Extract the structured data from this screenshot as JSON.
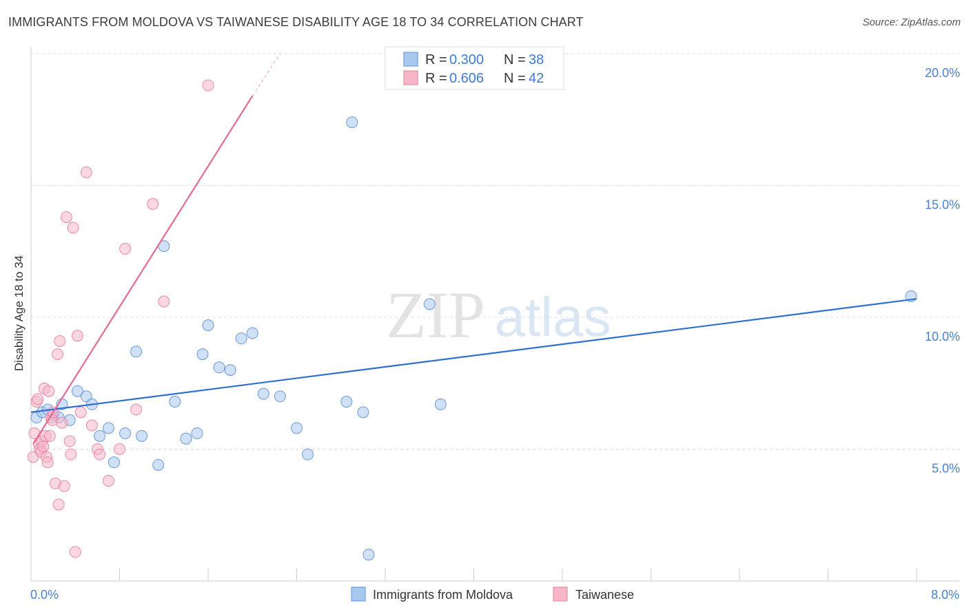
{
  "title": "IMMIGRANTS FROM MOLDOVA VS TAIWANESE DISABILITY AGE 18 TO 34 CORRELATION CHART",
  "source": "Source: ZipAtlas.com",
  "watermark": {
    "zip": "ZIP",
    "atlas": "atlas"
  },
  "legend": {
    "r_label": "R =",
    "n_label": "N =",
    "rows": [
      {
        "r": "0.300",
        "n": "38"
      },
      {
        "r": "0.606",
        "n": "42"
      }
    ]
  },
  "colors": {
    "blue_fill": "#a9c8f0",
    "blue_stroke": "#5b8fd8",
    "blue_line": "#2f6fd0",
    "pink_fill": "#f6b6c8",
    "pink_stroke": "#e77fa0",
    "pink_line": "#e36a92",
    "grid": "#dddddd",
    "tick_text": "#4a7fd0"
  },
  "chart_data": {
    "type": "scatter",
    "title": "IMMIGRANTS FROM MOLDOVA VS TAIWANESE DISABILITY AGE 18 TO 34 CORRELATION CHART",
    "xlabel": "",
    "ylabel": "Disability Age 18 to 34",
    "xlim": [
      0,
      8
    ],
    "ylim": [
      0,
      20
    ],
    "x_tick_labels": [
      "0.0%",
      "8.0%"
    ],
    "y_ticks": [
      5,
      10,
      15,
      20
    ],
    "y_tick_labels": [
      "5.0%",
      "10.0%",
      "15.0%",
      "20.0%"
    ],
    "grid": true,
    "legend_position": "top-center",
    "series": [
      {
        "name": "Immigrants from Moldova",
        "color": "#a9c8f0",
        "r": 0.3,
        "n": 38,
        "trend": {
          "x": [
            0,
            8
          ],
          "y": [
            6.4,
            10.7
          ]
        },
        "points": [
          [
            0.05,
            6.2
          ],
          [
            0.1,
            6.4
          ],
          [
            0.15,
            6.5
          ],
          [
            0.2,
            6.3
          ],
          [
            0.25,
            6.2
          ],
          [
            0.28,
            6.7
          ],
          [
            0.35,
            6.1
          ],
          [
            0.42,
            7.2
          ],
          [
            0.5,
            7.0
          ],
          [
            0.55,
            6.7
          ],
          [
            0.62,
            5.5
          ],
          [
            0.7,
            5.8
          ],
          [
            0.75,
            4.5
          ],
          [
            0.85,
            5.6
          ],
          [
            0.95,
            8.7
          ],
          [
            1.0,
            5.5
          ],
          [
            1.15,
            4.4
          ],
          [
            1.2,
            12.7
          ],
          [
            1.3,
            6.8
          ],
          [
            1.4,
            5.4
          ],
          [
            1.5,
            5.6
          ],
          [
            1.55,
            8.6
          ],
          [
            1.6,
            9.7
          ],
          [
            1.7,
            8.1
          ],
          [
            1.8,
            8.0
          ],
          [
            1.9,
            9.2
          ],
          [
            2.0,
            9.4
          ],
          [
            2.1,
            7.1
          ],
          [
            2.25,
            7.0
          ],
          [
            2.4,
            5.8
          ],
          [
            2.5,
            4.8
          ],
          [
            2.85,
            6.8
          ],
          [
            2.9,
            17.4
          ],
          [
            3.0,
            6.4
          ],
          [
            3.05,
            1.0
          ],
          [
            3.6,
            10.5
          ],
          [
            3.7,
            6.7
          ],
          [
            7.95,
            10.8
          ]
        ]
      },
      {
        "name": "Taiwanese",
        "color": "#f6b6c8",
        "r": 0.606,
        "n": 42,
        "trend": {
          "x": [
            0.02,
            2.0
          ],
          "y": [
            5.2,
            18.4
          ]
        },
        "trend_dashed": {
          "x": [
            2.0,
            2.25
          ],
          "y": [
            18.4,
            20.0
          ]
        },
        "points": [
          [
            0.02,
            4.7
          ],
          [
            0.03,
            5.6
          ],
          [
            0.05,
            6.8
          ],
          [
            0.06,
            6.9
          ],
          [
            0.07,
            5.2
          ],
          [
            0.08,
            5.0
          ],
          [
            0.09,
            4.9
          ],
          [
            0.1,
            5.3
          ],
          [
            0.11,
            5.1
          ],
          [
            0.12,
            7.3
          ],
          [
            0.13,
            5.5
          ],
          [
            0.14,
            4.7
          ],
          [
            0.15,
            4.5
          ],
          [
            0.16,
            7.2
          ],
          [
            0.17,
            5.5
          ],
          [
            0.18,
            6.2
          ],
          [
            0.19,
            6.1
          ],
          [
            0.2,
            6.4
          ],
          [
            0.22,
            3.7
          ],
          [
            0.24,
            8.6
          ],
          [
            0.25,
            2.9
          ],
          [
            0.26,
            9.1
          ],
          [
            0.28,
            6.0
          ],
          [
            0.3,
            3.6
          ],
          [
            0.32,
            13.8
          ],
          [
            0.35,
            5.3
          ],
          [
            0.36,
            4.8
          ],
          [
            0.38,
            13.4
          ],
          [
            0.4,
            1.1
          ],
          [
            0.42,
            9.3
          ],
          [
            0.45,
            6.4
          ],
          [
            0.5,
            15.5
          ],
          [
            0.55,
            5.9
          ],
          [
            0.6,
            5.0
          ],
          [
            0.62,
            4.8
          ],
          [
            0.7,
            3.8
          ],
          [
            0.8,
            5.0
          ],
          [
            0.85,
            12.6
          ],
          [
            0.95,
            6.5
          ],
          [
            1.1,
            14.3
          ],
          [
            1.2,
            10.6
          ],
          [
            1.6,
            18.8
          ]
        ]
      }
    ]
  }
}
